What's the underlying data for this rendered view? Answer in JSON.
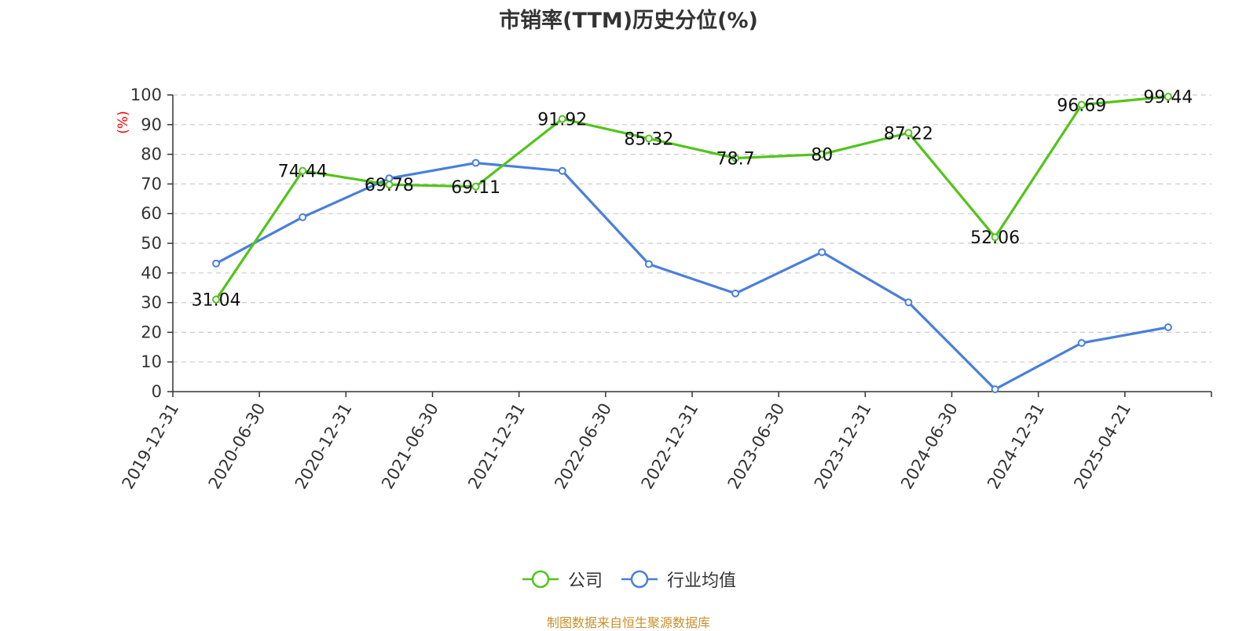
{
  "chart_data": {
    "type": "line",
    "title": "市销率(TTM)历史分位(%)",
    "ylabel": "(%)",
    "xlabel": "",
    "categories": [
      "2019-12-31",
      "2020-06-30",
      "2020-12-31",
      "2021-06-30",
      "2021-12-31",
      "2022-06-30",
      "2022-12-31",
      "2023-06-30",
      "2023-12-31",
      "2024-06-30",
      "2024-12-31",
      "2025-04-21"
    ],
    "ylim": [
      0,
      100
    ],
    "yticks": [
      0,
      10,
      20,
      30,
      40,
      50,
      60,
      70,
      80,
      90,
      100
    ],
    "grid": "horizontal dashed",
    "legend_position": "bottom-center",
    "series": [
      {
        "name": "公司",
        "color": "#52c41a",
        "values": [
          31.04,
          74.44,
          69.78,
          69.11,
          91.92,
          85.32,
          78.7,
          80,
          87.22,
          52.06,
          96.69,
          99.44
        ],
        "labels": [
          "31.04",
          "74.44",
          "69.78",
          "69.11",
          "91.92",
          "85.32",
          "78.7",
          "80",
          "87.22",
          "52.06",
          "96.69",
          "99.44"
        ]
      },
      {
        "name": "行业均值",
        "color": "#4a7fdb",
        "values": [
          43.2,
          58.8,
          71.9,
          77.1,
          74.4,
          43.0,
          33.1,
          47.0,
          30.1,
          0.8,
          16.4,
          21.7
        ]
      }
    ]
  },
  "legend": {
    "company": "公司",
    "industry": "行业均值"
  },
  "source": "制图数据来自恒生聚源数据库"
}
